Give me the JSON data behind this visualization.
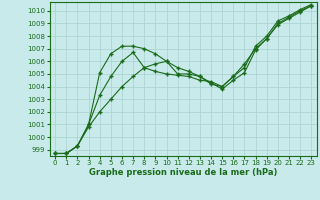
{
  "xlabel": "Graphe pression niveau de la mer (hPa)",
  "bg_color": "#c8eaea",
  "grid_color": "#a8d0d0",
  "line_color": "#1a6b1a",
  "xlim": [
    -0.5,
    23.5
  ],
  "ylim": [
    998.5,
    1010.7
  ],
  "yticks": [
    999,
    1000,
    1001,
    1002,
    1003,
    1004,
    1005,
    1006,
    1007,
    1008,
    1009,
    1010
  ],
  "xticks": [
    0,
    1,
    2,
    3,
    4,
    5,
    6,
    7,
    8,
    9,
    10,
    11,
    12,
    13,
    14,
    15,
    16,
    17,
    18,
    19,
    20,
    21,
    22,
    23
  ],
  "series1_x": [
    0,
    1,
    2,
    3,
    4,
    5,
    6,
    7,
    8,
    9,
    10,
    11,
    12,
    13,
    14,
    15,
    16,
    17,
    18,
    19,
    20,
    21,
    22,
    23
  ],
  "series1_y": [
    998.7,
    998.7,
    999.3,
    1001.0,
    1005.1,
    1006.6,
    1007.2,
    1007.2,
    1007.0,
    1006.6,
    1006.0,
    1005.0,
    1005.0,
    1004.8,
    1004.3,
    1003.8,
    1004.5,
    1005.1,
    1006.9,
    1007.8,
    1009.0,
    1009.5,
    1010.0,
    1010.4
  ],
  "series2_x": [
    0,
    1,
    2,
    3,
    4,
    5,
    6,
    7,
    8,
    9,
    10,
    11,
    12,
    13,
    14,
    15,
    16,
    17,
    18,
    19,
    20,
    21,
    22,
    23
  ],
  "series2_y": [
    998.7,
    998.7,
    999.3,
    1001.0,
    1003.3,
    1004.8,
    1006.0,
    1006.7,
    1005.5,
    1005.2,
    1005.0,
    1004.9,
    1004.8,
    1004.5,
    1004.4,
    1004.0,
    1004.8,
    1005.5,
    1007.2,
    1008.0,
    1009.2,
    1009.6,
    1010.1,
    1010.5
  ],
  "series3_x": [
    0,
    1,
    2,
    3,
    4,
    5,
    6,
    7,
    8,
    9,
    10,
    11,
    12,
    13,
    14,
    15,
    16,
    17,
    18,
    19,
    20,
    21,
    22,
    23
  ],
  "series3_y": [
    998.7,
    998.7,
    999.3,
    1000.8,
    1002.0,
    1003.0,
    1004.0,
    1004.8,
    1005.5,
    1005.8,
    1006.0,
    1005.5,
    1005.2,
    1004.8,
    1004.2,
    1004.0,
    1004.8,
    1005.8,
    1007.0,
    1007.8,
    1008.9,
    1009.4,
    1009.9,
    1010.4
  ]
}
